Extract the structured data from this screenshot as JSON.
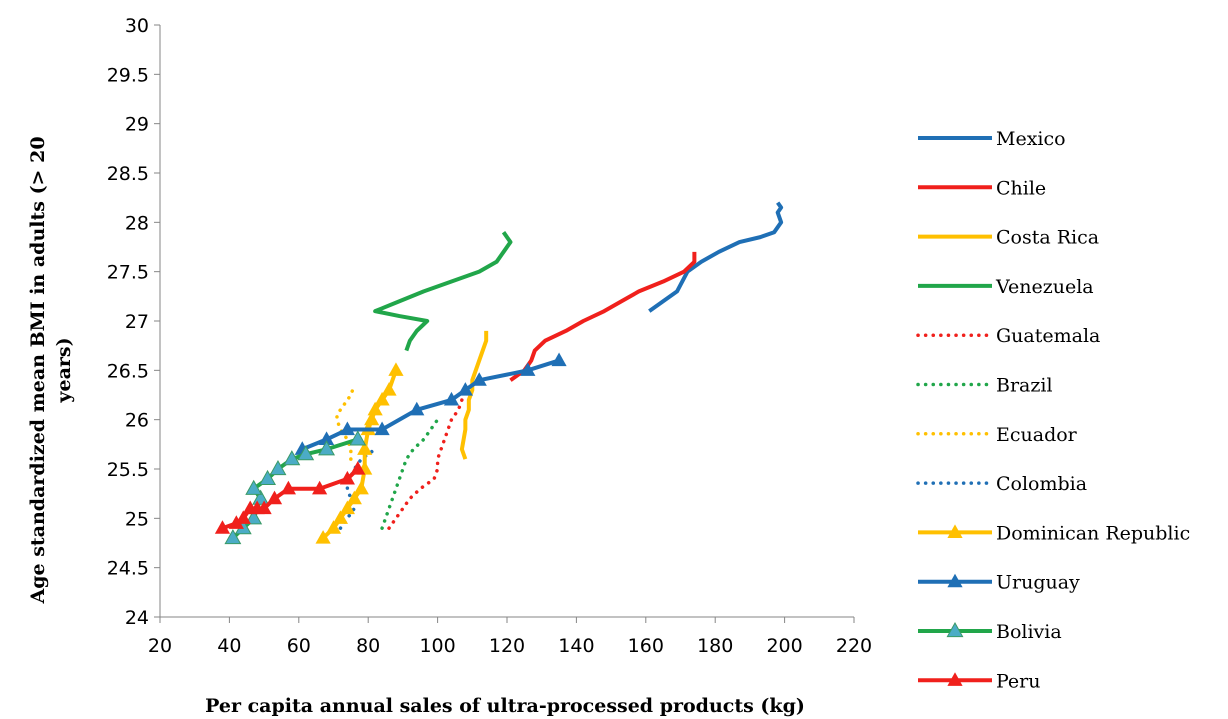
{
  "chart_data": {
    "type": "line",
    "xlabel": "Per capita annual sales of ultra-processed products (kg)",
    "ylabel_lines": [
      "Age standardized mean BMI in adults (> 20",
      "years)"
    ],
    "xlim": [
      20,
      220
    ],
    "ylim": [
      24,
      30
    ],
    "x_ticks": [
      "20",
      "40",
      "60",
      "80",
      "100",
      "120",
      "140",
      "160",
      "180",
      "200",
      "220"
    ],
    "y_ticks": [
      "24",
      "24.5",
      "25",
      "25.5",
      "26",
      "26.5",
      "27",
      "27.5",
      "28",
      "28.5",
      "29",
      "29.5",
      "30"
    ],
    "grid": false,
    "legend_position": "right",
    "series": [
      {
        "name": "Mexico",
        "color": "#1f6fb5",
        "style": "solid",
        "marker": "none",
        "x": [
          161,
          165,
          169,
          172,
          176,
          181,
          187,
          193,
          197,
          199,
          198,
          199,
          198
        ],
        "y": [
          27.1,
          27.2,
          27.3,
          27.5,
          27.6,
          27.7,
          27.8,
          27.85,
          27.9,
          28.0,
          28.1,
          28.15,
          28.2
        ]
      },
      {
        "name": "Chile",
        "color": "#f0201c",
        "style": "solid",
        "marker": "none",
        "x": [
          121,
          125,
          127,
          128,
          131,
          137,
          142,
          148,
          153,
          158,
          165,
          171,
          174,
          174
        ],
        "y": [
          26.4,
          26.5,
          26.6,
          26.7,
          26.8,
          26.9,
          27.0,
          27.1,
          27.2,
          27.3,
          27.4,
          27.5,
          27.6,
          27.7
        ]
      },
      {
        "name": "Costa Rica",
        "color": "#ffc000",
        "style": "solid",
        "marker": "none",
        "x": [
          108,
          107,
          108,
          108,
          109,
          109,
          110,
          110,
          111,
          112,
          113,
          114,
          114
        ],
        "y": [
          25.6,
          25.7,
          25.9,
          26.0,
          26.1,
          26.2,
          26.3,
          26.4,
          26.5,
          26.6,
          26.7,
          26.8,
          26.9
        ]
      },
      {
        "name": "Venezuela",
        "color": "#21a64a",
        "style": "solid",
        "marker": "none",
        "x": [
          91,
          92,
          94,
          97,
          89,
          82,
          89,
          96,
          104,
          112,
          117,
          119,
          121,
          119
        ],
        "y": [
          26.7,
          26.8,
          26.9,
          27.0,
          27.05,
          27.1,
          27.2,
          27.3,
          27.4,
          27.5,
          27.6,
          27.7,
          27.8,
          27.9
        ]
      },
      {
        "name": "Guatemala",
        "color": "#f0201c",
        "style": "dotted",
        "marker": "none",
        "x": [
          86,
          88,
          90,
          92,
          95,
          99,
          100,
          100,
          101,
          102,
          103,
          104,
          106,
          107
        ],
        "y": [
          24.9,
          25.0,
          25.1,
          25.2,
          25.3,
          25.4,
          25.5,
          25.6,
          25.7,
          25.8,
          25.9,
          26.0,
          26.1,
          26.2
        ]
      },
      {
        "name": "Brazil",
        "color": "#21a64a",
        "style": "dotted",
        "marker": "none",
        "x": [
          84,
          85,
          86,
          87,
          88,
          89,
          90,
          91,
          93,
          96,
          98,
          100
        ],
        "y": [
          24.9,
          25.0,
          25.1,
          25.2,
          25.3,
          25.4,
          25.5,
          25.6,
          25.7,
          25.8,
          25.9,
          26.0
        ]
      },
      {
        "name": "Ecuador",
        "color": "#ffc000",
        "style": "dotted",
        "marker": "none",
        "x": [
          75,
          75,
          74,
          73,
          72,
          71,
          71,
          72,
          73,
          74,
          75,
          76
        ],
        "y": [
          25.6,
          25.7,
          25.8,
          25.85,
          25.9,
          26.0,
          26.05,
          26.1,
          26.15,
          26.2,
          26.25,
          26.35
        ]
      },
      {
        "name": "Colombia",
        "color": "#1f6fb5",
        "style": "dotted",
        "marker": "none",
        "x": [
          72,
          74,
          76,
          75,
          74,
          74,
          76,
          78,
          80,
          82
        ],
        "y": [
          24.9,
          25.0,
          25.1,
          25.2,
          25.3,
          25.35,
          25.5,
          25.6,
          25.65,
          25.7
        ]
      },
      {
        "name": "Dominican Republic",
        "color": "#ffc000",
        "style": "solid",
        "marker": "triangle",
        "x": [
          67,
          70,
          72,
          74,
          76,
          78,
          79,
          79,
          80,
          81,
          82,
          84,
          86,
          88
        ],
        "y": [
          24.8,
          24.9,
          25.0,
          25.1,
          25.2,
          25.3,
          25.5,
          25.7,
          25.9,
          26.0,
          26.1,
          26.2,
          26.3,
          26.5
        ]
      },
      {
        "name": "Uruguay",
        "color": "#1f6fb5",
        "style": "solid",
        "marker": "triangle",
        "x": [
          61,
          68,
          74,
          84,
          94,
          104,
          108,
          112,
          126,
          135
        ],
        "y": [
          25.7,
          25.8,
          25.9,
          25.9,
          26.1,
          26.2,
          26.3,
          26.4,
          26.5,
          26.6
        ]
      },
      {
        "name": "Bolivia",
        "color": "#21a64a",
        "style": "solid",
        "marker": "triangle",
        "x": [
          41,
          44,
          47,
          49,
          47,
          51,
          54,
          58,
          62,
          68,
          77
        ],
        "y": [
          24.8,
          24.9,
          25.0,
          25.2,
          25.3,
          25.4,
          25.5,
          25.6,
          25.65,
          25.7,
          25.8
        ]
      },
      {
        "name": "Peru",
        "color": "#f0201c",
        "style": "solid",
        "marker": "triangle",
        "x": [
          38,
          42,
          44,
          46,
          48,
          50,
          53,
          57,
          66,
          74,
          77
        ],
        "y": [
          24.9,
          24.95,
          25.0,
          25.1,
          25.1,
          25.1,
          25.2,
          25.3,
          25.3,
          25.4,
          25.5
        ]
      }
    ]
  }
}
